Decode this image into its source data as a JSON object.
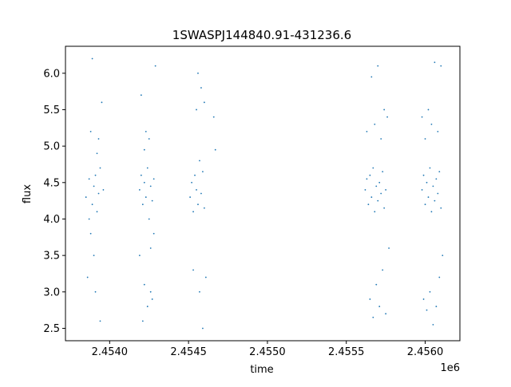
{
  "chart_data": {
    "type": "scatter",
    "title": "1SWASPJ144840.91-431236.6",
    "xlabel": "time",
    "ylabel": "flux",
    "x_offset_label": "1e6",
    "xlim": [
      2.45372,
      2.45622
    ],
    "ylim": [
      2.33,
      6.37
    ],
    "x_ticks": [
      2.454,
      2.4545,
      2.455,
      2.4555,
      2.456
    ],
    "x_tick_labels": [
      "2.4540",
      "2.4545",
      "2.4550",
      "2.4555",
      "2.4560"
    ],
    "y_ticks": [
      2.5,
      3.0,
      3.5,
      4.0,
      4.5,
      5.0,
      5.5,
      6.0
    ],
    "y_tick_labels": [
      "2.5",
      "3.0",
      "3.5",
      "4.0",
      "4.5",
      "5.0",
      "5.5",
      "6.0"
    ],
    "grid": false,
    "marker_color": "#1f77b4",
    "series": [
      {
        "values": [
          [
            2.45385,
            4.3
          ],
          [
            2.45387,
            4.55
          ],
          [
            2.45388,
            3.8
          ],
          [
            2.45389,
            4.2
          ],
          [
            2.4539,
            4.45
          ],
          [
            2.45391,
            4.6
          ],
          [
            2.45392,
            4.1
          ],
          [
            2.45393,
            4.35
          ],
          [
            2.45394,
            4.7
          ],
          [
            2.45386,
            3.2
          ],
          [
            2.45388,
            5.2
          ],
          [
            2.45389,
            6.2
          ],
          [
            2.45391,
            3.0
          ],
          [
            2.45393,
            5.1
          ],
          [
            2.45394,
            2.6
          ],
          [
            2.45395,
            5.6
          ],
          [
            2.45396,
            4.4
          ],
          [
            2.45387,
            4.0
          ],
          [
            2.4539,
            3.5
          ],
          [
            2.45392,
            4.9
          ],
          [
            2.45419,
            4.4
          ],
          [
            2.4542,
            4.6
          ],
          [
            2.45421,
            4.2
          ],
          [
            2.45422,
            4.5
          ],
          [
            2.45423,
            4.3
          ],
          [
            2.45424,
            4.7
          ],
          [
            2.45425,
            4.0
          ],
          [
            2.45426,
            4.45
          ],
          [
            2.45427,
            4.25
          ],
          [
            2.45428,
            4.55
          ],
          [
            2.45419,
            3.5
          ],
          [
            2.4542,
            5.7
          ],
          [
            2.45421,
            2.6
          ],
          [
            2.45422,
            3.1
          ],
          [
            2.45423,
            5.2
          ],
          [
            2.45424,
            2.8
          ],
          [
            2.45425,
            5.1
          ],
          [
            2.45426,
            3.0
          ],
          [
            2.45427,
            2.9
          ],
          [
            2.45428,
            3.8
          ],
          [
            2.45429,
            6.1
          ],
          [
            2.45422,
            4.95
          ],
          [
            2.45426,
            3.6
          ],
          [
            2.45451,
            4.3
          ],
          [
            2.45452,
            4.5
          ],
          [
            2.45453,
            4.1
          ],
          [
            2.45454,
            4.6
          ],
          [
            2.45455,
            4.4
          ],
          [
            2.45456,
            4.2
          ],
          [
            2.45457,
            4.8
          ],
          [
            2.45458,
            4.35
          ],
          [
            2.45459,
            4.65
          ],
          [
            2.4546,
            4.15
          ],
          [
            2.45453,
            3.3
          ],
          [
            2.45455,
            5.5
          ],
          [
            2.45456,
            6.0
          ],
          [
            2.45457,
            3.0
          ],
          [
            2.45458,
            5.8
          ],
          [
            2.45459,
            2.5
          ],
          [
            2.4546,
            5.6
          ],
          [
            2.45461,
            3.2
          ],
          [
            2.45466,
            5.4
          ],
          [
            2.45467,
            4.95
          ],
          [
            2.45562,
            4.4
          ],
          [
            2.45563,
            4.55
          ],
          [
            2.45564,
            4.2
          ],
          [
            2.45565,
            4.6
          ],
          [
            2.45566,
            4.3
          ],
          [
            2.45567,
            4.7
          ],
          [
            2.45568,
            4.1
          ],
          [
            2.45569,
            4.45
          ],
          [
            2.4557,
            4.25
          ],
          [
            2.45571,
            4.5
          ],
          [
            2.45572,
            4.35
          ],
          [
            2.45573,
            4.65
          ],
          [
            2.45574,
            4.15
          ],
          [
            2.45575,
            4.4
          ],
          [
            2.45563,
            5.2
          ],
          [
            2.45565,
            2.9
          ],
          [
            2.45566,
            5.95
          ],
          [
            2.45567,
            2.65
          ],
          [
            2.45568,
            5.3
          ],
          [
            2.45569,
            3.1
          ],
          [
            2.4557,
            6.1
          ],
          [
            2.45571,
            2.8
          ],
          [
            2.45572,
            5.1
          ],
          [
            2.45573,
            3.3
          ],
          [
            2.45574,
            5.5
          ],
          [
            2.45575,
            2.7
          ],
          [
            2.45576,
            5.4
          ],
          [
            2.45577,
            3.6
          ],
          [
            2.45598,
            4.4
          ],
          [
            2.45599,
            4.6
          ],
          [
            2.456,
            4.2
          ],
          [
            2.45601,
            4.5
          ],
          [
            2.45602,
            4.3
          ],
          [
            2.45603,
            4.7
          ],
          [
            2.45604,
            4.1
          ],
          [
            2.45605,
            4.45
          ],
          [
            2.45606,
            4.25
          ],
          [
            2.45607,
            4.55
          ],
          [
            2.45608,
            4.35
          ],
          [
            2.45609,
            4.65
          ],
          [
            2.4561,
            4.15
          ],
          [
            2.45598,
            5.4
          ],
          [
            2.45599,
            2.9
          ],
          [
            2.456,
            5.1
          ],
          [
            2.45601,
            2.75
          ],
          [
            2.45602,
            5.5
          ],
          [
            2.45603,
            3.0
          ],
          [
            2.45604,
            5.3
          ],
          [
            2.45605,
            2.55
          ],
          [
            2.45606,
            6.15
          ],
          [
            2.45607,
            2.8
          ],
          [
            2.45608,
            5.2
          ],
          [
            2.45609,
            3.2
          ],
          [
            2.4561,
            6.1
          ],
          [
            2.45611,
            3.5
          ]
        ]
      }
    ]
  }
}
